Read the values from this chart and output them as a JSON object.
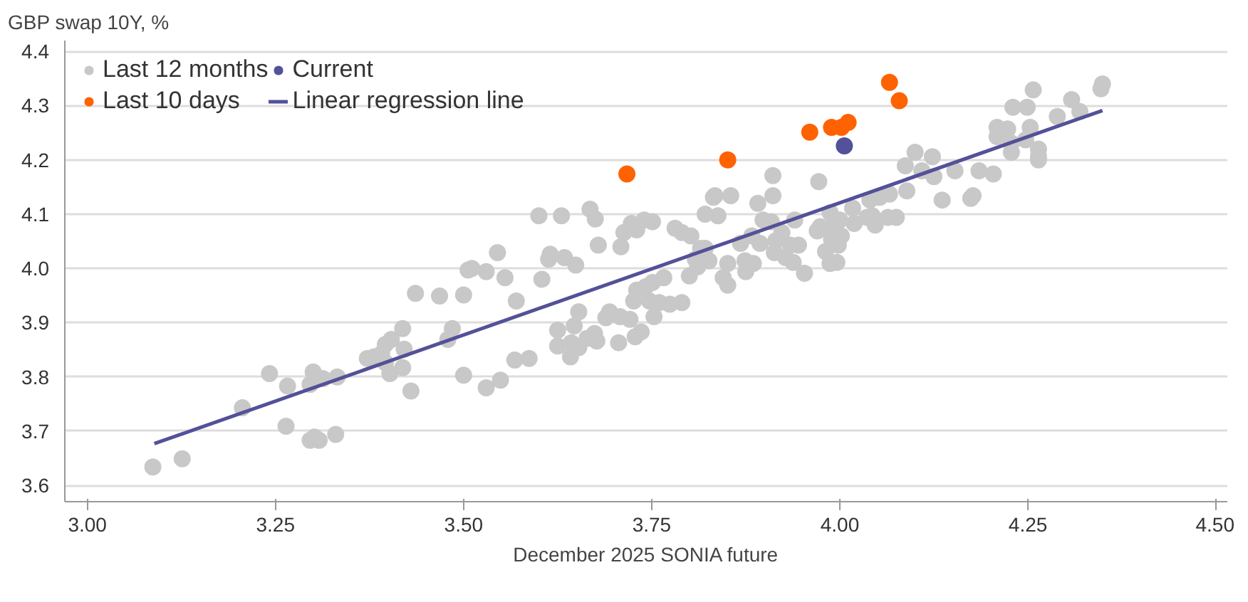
{
  "chart_data": {
    "type": "scatter",
    "ylabel": "GBP swap 10Y, %",
    "xlabel": "December 2025 SONIA future",
    "xlim": [
      2.97,
      4.515
    ],
    "ylim": [
      3.57,
      4.42
    ],
    "xticks": [
      {
        "value": 3.0,
        "label": "3.00"
      },
      {
        "value": 3.25,
        "label": "3.25"
      },
      {
        "value": 3.5,
        "label": "3.50"
      },
      {
        "value": 3.75,
        "label": "3.75"
      },
      {
        "value": 4.0,
        "label": "4.00"
      },
      {
        "value": 4.25,
        "label": "4.25"
      },
      {
        "value": 4.5,
        "label": "4.50"
      }
    ],
    "yticks": [
      3.6,
      3.7,
      3.8,
      3.9,
      {
        "value": 4.0,
        "label": "4.0"
      },
      4.1,
      4.2,
      4.3,
      4.4
    ],
    "grid": "y",
    "legend": "top left",
    "series": [
      {
        "name": "Last 12 months",
        "marker": "circle",
        "color": "#c8c8c8",
        "x": [
          3.087,
          3.126,
          3.206,
          3.242,
          3.266,
          3.264,
          3.296,
          3.296,
          3.302,
          3.308,
          3.3,
          3.313,
          3.33,
          3.332,
          3.372,
          3.381,
          3.391,
          3.396,
          3.396,
          3.402,
          3.404,
          3.419,
          3.419,
          3.421,
          3.43,
          3.436,
          3.468,
          3.479,
          3.485,
          3.5,
          3.506,
          3.511,
          3.5,
          3.53,
          3.549,
          3.545,
          3.53,
          3.555,
          3.57,
          3.568,
          3.587,
          3.6,
          3.604,
          3.613,
          3.615,
          3.63,
          3.634,
          3.649,
          3.625,
          3.625,
          3.642,
          3.643,
          3.653,
          3.647,
          3.653,
          3.664,
          3.668,
          3.675,
          3.679,
          3.674,
          3.677,
          3.689,
          3.694,
          3.708,
          3.706,
          3.709,
          3.713,
          3.726,
          3.73,
          3.723,
          3.721,
          3.728,
          3.736,
          3.73,
          3.74,
          3.751,
          3.742,
          3.747,
          3.751,
          3.753,
          3.76,
          3.766,
          3.774,
          3.781,
          3.79,
          3.802,
          3.79,
          3.8,
          3.808,
          3.811,
          3.815,
          3.821,
          3.821,
          3.826,
          3.832,
          3.834,
          3.838,
          3.851,
          3.845,
          3.851,
          3.855,
          3.868,
          3.875,
          3.874,
          3.883,
          3.885,
          3.891,
          3.894,
          3.898,
          3.909,
          3.911,
          3.911,
          3.915,
          3.913,
          3.923,
          3.928,
          3.934,
          3.938,
          3.945,
          3.94,
          3.953,
          3.97,
          3.972,
          3.974,
          3.981,
          3.989,
          3.985,
          3.987,
          3.998,
          4.002,
          3.987,
          3.996,
          4.0,
          4.019,
          4.017,
          4.036,
          4.04,
          4.043,
          4.047,
          4.053,
          4.066,
          4.064,
          4.075,
          4.087,
          4.089,
          4.1,
          4.109,
          4.123,
          4.125,
          4.136,
          4.153,
          4.174,
          4.177,
          4.185,
          4.204,
          4.209,
          4.209,
          4.223,
          4.228,
          4.228,
          4.23,
          4.247,
          4.249,
          4.253,
          4.257,
          4.264,
          4.264,
          4.264,
          4.289,
          4.308,
          4.319,
          4.347,
          4.349
        ],
        "values": [
          3.634,
          3.649,
          3.743,
          3.806,
          3.783,
          3.709,
          3.683,
          3.786,
          3.689,
          3.683,
          3.809,
          3.797,
          3.694,
          3.8,
          3.834,
          3.837,
          3.843,
          3.86,
          3.826,
          3.806,
          3.869,
          3.889,
          3.817,
          3.851,
          3.774,
          3.954,
          3.949,
          3.869,
          3.889,
          3.951,
          3.997,
          4.0,
          3.803,
          3.78,
          3.794,
          4.029,
          3.994,
          3.983,
          3.94,
          3.831,
          3.834,
          4.097,
          3.98,
          4.017,
          4.026,
          4.097,
          4.02,
          4.006,
          3.857,
          3.886,
          3.837,
          3.863,
          3.854,
          3.894,
          3.92,
          3.871,
          4.109,
          4.091,
          4.043,
          3.88,
          3.866,
          3.909,
          3.92,
          3.911,
          3.863,
          4.04,
          4.066,
          3.94,
          3.96,
          4.083,
          3.906,
          3.874,
          3.883,
          4.071,
          4.089,
          4.086,
          3.966,
          3.94,
          3.974,
          3.911,
          3.937,
          3.983,
          3.934,
          4.074,
          4.066,
          4.06,
          3.937,
          3.986,
          4.017,
          4.003,
          4.037,
          4.1,
          4.037,
          4.014,
          4.131,
          4.134,
          4.097,
          3.969,
          3.983,
          4.009,
          4.134,
          4.046,
          3.994,
          4.014,
          4.06,
          4.009,
          4.12,
          4.046,
          4.089,
          4.086,
          4.171,
          4.134,
          4.051,
          4.029,
          4.066,
          4.02,
          4.043,
          4.011,
          4.043,
          4.089,
          3.991,
          4.069,
          4.16,
          4.077,
          4.031,
          4.054,
          4.074,
          4.103,
          4.043,
          4.06,
          4.009,
          4.011,
          4.089,
          4.083,
          4.111,
          4.094,
          4.126,
          4.097,
          4.08,
          4.131,
          4.137,
          4.094,
          4.094,
          4.189,
          4.143,
          4.214,
          4.18,
          4.206,
          4.169,
          4.126,
          4.18,
          4.129,
          4.134,
          4.18,
          4.174,
          4.26,
          4.243,
          4.257,
          4.214,
          4.231,
          4.297,
          4.237,
          4.297,
          4.26,
          4.329,
          4.22,
          4.206,
          4.2,
          4.28,
          4.311,
          4.289,
          4.331,
          4.34
        ]
      },
      {
        "name": "Last 10 days",
        "marker": "circle",
        "color": "#ff6200",
        "x": [
          3.717,
          3.851,
          3.96,
          3.989,
          4.002,
          4.011,
          4.066,
          4.079
        ],
        "values": [
          4.174,
          4.2,
          4.251,
          4.26,
          4.26,
          4.269,
          4.343,
          4.309
        ]
      },
      {
        "name": "Current",
        "marker": "circle",
        "color": "#525199",
        "x": [
          4.006
        ],
        "values": [
          4.226
        ]
      },
      {
        "name": "Linear regression line",
        "type": "line",
        "marker": "none",
        "color": "#525199",
        "x": [
          3.089,
          4.349
        ],
        "values": [
          3.677,
          4.291
        ]
      }
    ]
  }
}
